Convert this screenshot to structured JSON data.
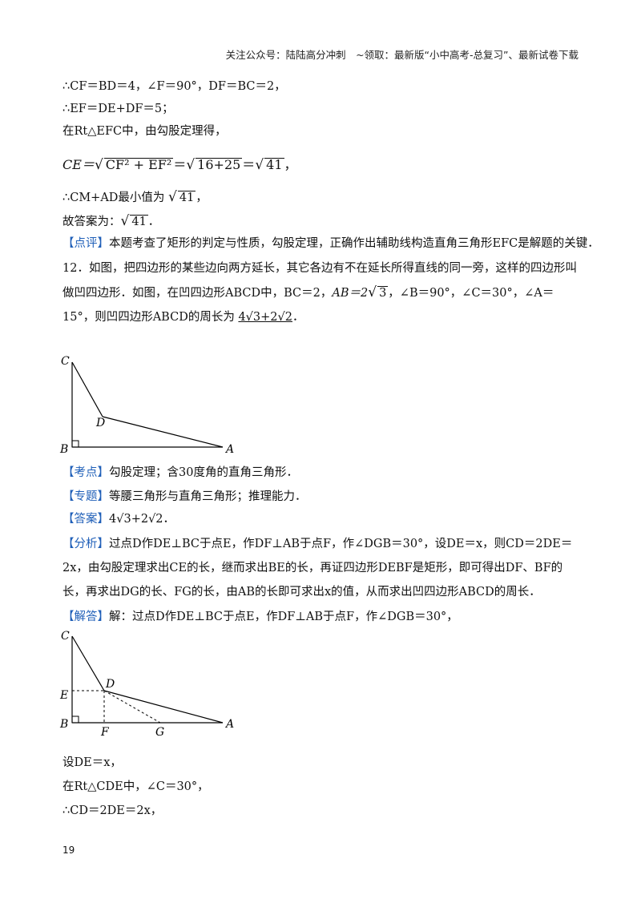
{
  "header": "关注公众号：陆陆高分冲刺　~领取：最新版“小中高考-总复习”、最新试卷下载",
  "page_number": "19",
  "lines": {
    "l1": "∴CF＝BD＝4，∠F＝90°，DF＝BC＝2，",
    "l2": "∴EF＝DE+DF＝5；",
    "l3": "在Rt△EFC中，由勾股定理得，",
    "l4_ce": "CE＝",
    "l4_rad1": "CF² + EF²",
    "l4_rad2": "16+25",
    "l4_rad3": "41",
    "l5": "∴CM+AD最小值为",
    "l5_rad": "41",
    "l6": "故答案为：",
    "l6_rad": "41",
    "dianping_tag": "【点评】",
    "dianping": "本题考查了矩形的判定与性质，勾股定理，正确作出辅助线构造直角三角形EFC是解题的关键．",
    "q12_a": "12．如图，把四边形的某些边向两方延长，其它各边有不在延长所得直线的同一旁，这样的四边形叫做凹四边形．如图，在凹四边形ABCD中，BC＝2，",
    "q12_ab": "AB＝2",
    "q12_ab_rad": "3",
    "q12_b": "，∠B＝90°，∠C＝30°，∠A＝15°，则凹四边形ABCD的周长为",
    "q12_ans": "4√3+2√2",
    "kaodian_tag": "【考点】",
    "kaodian": "勾股定理；含30度角的直角三角形．",
    "zhuanti_tag": "【专题】",
    "zhuanti": "等腰三角形与直角三角形；推理能力．",
    "daan_tag": "【答案】",
    "daan": "4√3+2√2．",
    "fenxi_tag": "【分析】",
    "fenxi": "过点D作DE⊥BC于点E，作DF⊥AB于点F，作∠DGB＝30°，设DE＝x，则CD＝2DE＝2x，由勾股定理求出CE的长，继而求出BE的长，再证四边形DEBF是矩形，即可得出DF、BF的长，再求出DG的长、FG的长，由AB的长即可求出x的值，从而求出凹四边形ABCD的周长．",
    "jieda_tag": "【解答】",
    "jieda": "解：过点D作DE⊥BC于点E，作DF⊥AB于点F，作∠DGB＝30°，",
    "s1": "设DE＝x，",
    "s2": "在Rt△CDE中，∠C＝30°，",
    "s3": "∴CD＝2DE＝2x，"
  },
  "fig1_labels": {
    "C": "C",
    "D": "D",
    "B": "B",
    "A": "A"
  },
  "fig2_labels": {
    "C": "C",
    "D": "D",
    "E": "E",
    "B": "B",
    "F": "F",
    "G": "G",
    "A": "A"
  }
}
